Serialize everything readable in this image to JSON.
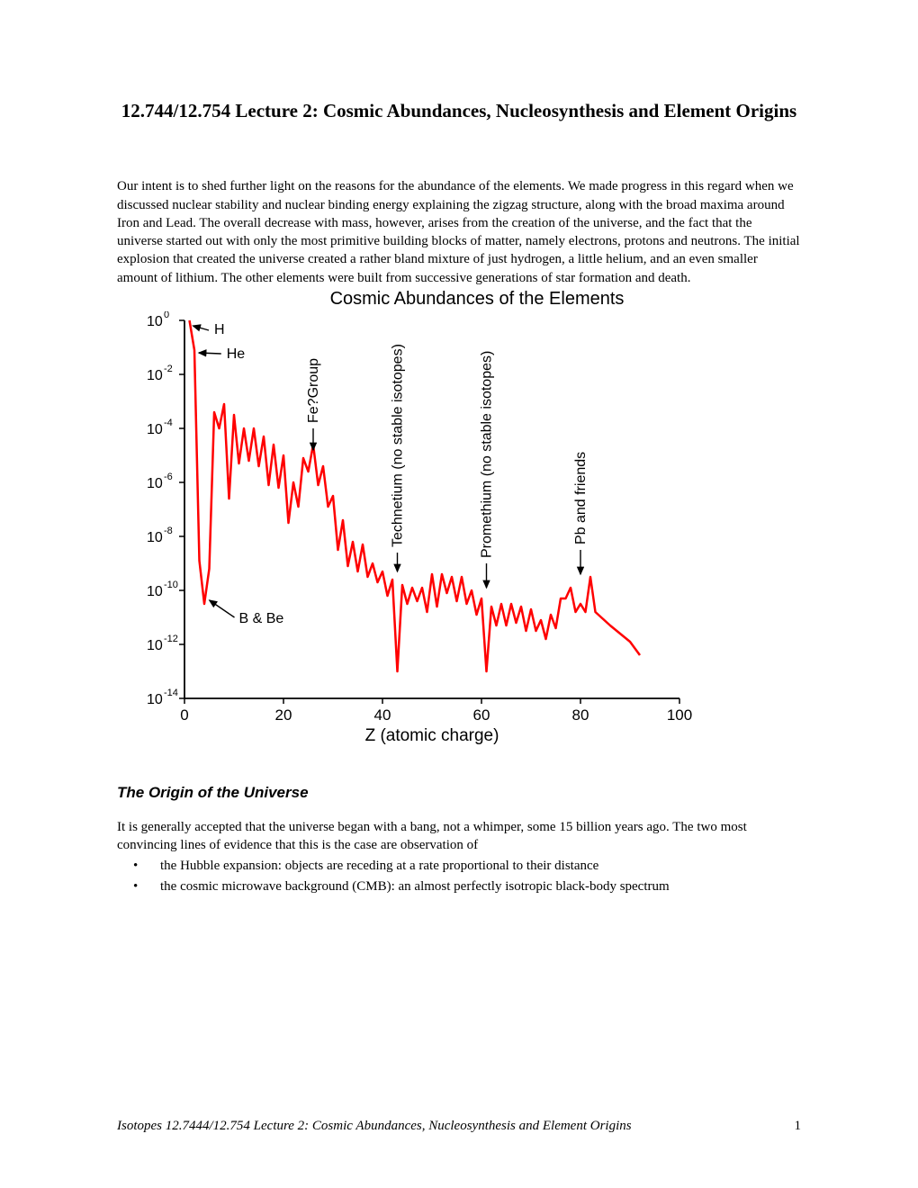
{
  "title": "12.744/12.754 Lecture 2: Cosmic Abundances, Nucleosynthesis and Element Origins",
  "intro_paragraph": "Our intent is to shed further light on the reasons for the abundance of the elements. We made progress in this regard when we discussed nuclear stability and nuclear binding energy explaining the zigzag structure, along with the broad maxima around Iron and Lead. The overall decrease with mass, however, arises from the creation of the universe, and the fact that the universe started out with only the most primitive building blocks of matter, namely electrons, protons and neutrons. The initial explosion that created the universe created a rather bland mixture of just hydrogen, a little helium, and an even smaller amount of lithium. The other elements were built from successive generations of star formation and death.",
  "chart": {
    "title": "Cosmic Abundances of the Elements",
    "type": "line",
    "xlabel": "Z (atomic charge)",
    "xlim": [
      0,
      100
    ],
    "xticks": [
      0,
      20,
      40,
      60,
      80,
      100
    ],
    "ylim_log10": [
      -14,
      0
    ],
    "yticks_log10": [
      0,
      -2,
      -4,
      -6,
      -8,
      -10,
      -12,
      -14
    ],
    "line_color": "#ff0000",
    "line_width": 2.5,
    "axis_color": "#000000",
    "background": "#ffffff",
    "tick_font_family": "Arial",
    "tick_fontsize": 16,
    "axis_label_fontsize": 19,
    "annotation_fontsize": 16,
    "data": [
      [
        1,
        0.0
      ],
      [
        2,
        -1.1
      ],
      [
        3,
        -8.9
      ],
      [
        4,
        -10.5
      ],
      [
        5,
        -9.2
      ],
      [
        6,
        -3.4
      ],
      [
        7,
        -4.0
      ],
      [
        8,
        -3.1
      ],
      [
        9,
        -6.6
      ],
      [
        10,
        -3.5
      ],
      [
        11,
        -5.3
      ],
      [
        12,
        -4.0
      ],
      [
        13,
        -5.2
      ],
      [
        14,
        -4.0
      ],
      [
        15,
        -5.4
      ],
      [
        16,
        -4.3
      ],
      [
        17,
        -6.1
      ],
      [
        18,
        -4.6
      ],
      [
        19,
        -6.2
      ],
      [
        20,
        -5.0
      ],
      [
        21,
        -7.5
      ],
      [
        22,
        -6.0
      ],
      [
        23,
        -6.9
      ],
      [
        24,
        -5.1
      ],
      [
        25,
        -5.6
      ],
      [
        26,
        -4.6
      ],
      [
        27,
        -6.1
      ],
      [
        28,
        -5.4
      ],
      [
        29,
        -6.9
      ],
      [
        30,
        -6.5
      ],
      [
        31,
        -8.5
      ],
      [
        32,
        -7.4
      ],
      [
        33,
        -9.1
      ],
      [
        34,
        -8.2
      ],
      [
        35,
        -9.3
      ],
      [
        36,
        -8.3
      ],
      [
        37,
        -9.5
      ],
      [
        38,
        -9.0
      ],
      [
        39,
        -9.7
      ],
      [
        40,
        -9.3
      ],
      [
        41,
        -10.2
      ],
      [
        42,
        -9.6
      ],
      [
        43,
        -13.0
      ],
      [
        44,
        -9.8
      ],
      [
        45,
        -10.5
      ],
      [
        46,
        -9.9
      ],
      [
        47,
        -10.4
      ],
      [
        48,
        -9.9
      ],
      [
        49,
        -10.8
      ],
      [
        50,
        -9.4
      ],
      [
        51,
        -10.6
      ],
      [
        52,
        -9.4
      ],
      [
        53,
        -10.1
      ],
      [
        54,
        -9.5
      ],
      [
        55,
        -10.4
      ],
      [
        56,
        -9.5
      ],
      [
        57,
        -10.5
      ],
      [
        58,
        -10.0
      ],
      [
        59,
        -10.9
      ],
      [
        60,
        -10.3
      ],
      [
        61,
        -13.0
      ],
      [
        62,
        -10.6
      ],
      [
        63,
        -11.3
      ],
      [
        64,
        -10.5
      ],
      [
        65,
        -11.3
      ],
      [
        66,
        -10.5
      ],
      [
        67,
        -11.2
      ],
      [
        68,
        -10.6
      ],
      [
        69,
        -11.5
      ],
      [
        70,
        -10.7
      ],
      [
        71,
        -11.5
      ],
      [
        72,
        -11.1
      ],
      [
        73,
        -11.8
      ],
      [
        74,
        -10.9
      ],
      [
        75,
        -11.4
      ],
      [
        76,
        -10.3
      ],
      [
        77,
        -10.3
      ],
      [
        78,
        -9.9
      ],
      [
        79,
        -10.8
      ],
      [
        80,
        -10.5
      ],
      [
        81,
        -10.8
      ],
      [
        82,
        -9.5
      ],
      [
        83,
        -10.8
      ],
      [
        86,
        -11.3
      ],
      [
        90,
        -11.9
      ],
      [
        92,
        -12.4
      ]
    ],
    "annotations": {
      "H": {
        "label": "H",
        "arrow_to_z": 1,
        "arrow_to_log10": -0.2
      },
      "He": {
        "label": "He",
        "arrow_to_z": 2,
        "arrow_to_log10": -1.2
      },
      "BBe": {
        "label": "B & Be",
        "arrow_to_z": 4.5,
        "arrow_to_log10": -10.3
      },
      "Fe": {
        "label": "Fe?Group",
        "arrow_to_z": 26,
        "arrow_to_log10": -4.9,
        "vertical": true
      },
      "Tc": {
        "label": "Technetium (no stable isotopes)",
        "arrow_to_z": 43,
        "arrow_to_log10": -9.4,
        "vertical": true
      },
      "Pm": {
        "label": "Promethium (no stable isotopes)",
        "arrow_to_z": 61,
        "arrow_to_log10": -10.0,
        "vertical": true
      },
      "Pb": {
        "label": "Pb and friends",
        "arrow_to_z": 80,
        "arrow_to_log10": -9.5,
        "vertical": true
      }
    }
  },
  "subheading": "The Origin of the Universe",
  "para2": "It is generally accepted that the universe began with a bang, not a whimper, some 15 billion years ago. The two most convincing lines of evidence that this is the case are observation of",
  "bullets": [
    "the Hubble expansion: objects are receding at a rate proportional to their distance",
    "the cosmic microwave background (CMB): an almost perfectly isotropic black-body spectrum"
  ],
  "footer_left": "Isotopes 12.7444/12.754 Lecture 2:    Cosmic Abundances, Nucleosynthesis and Element Origins",
  "footer_page": "1"
}
